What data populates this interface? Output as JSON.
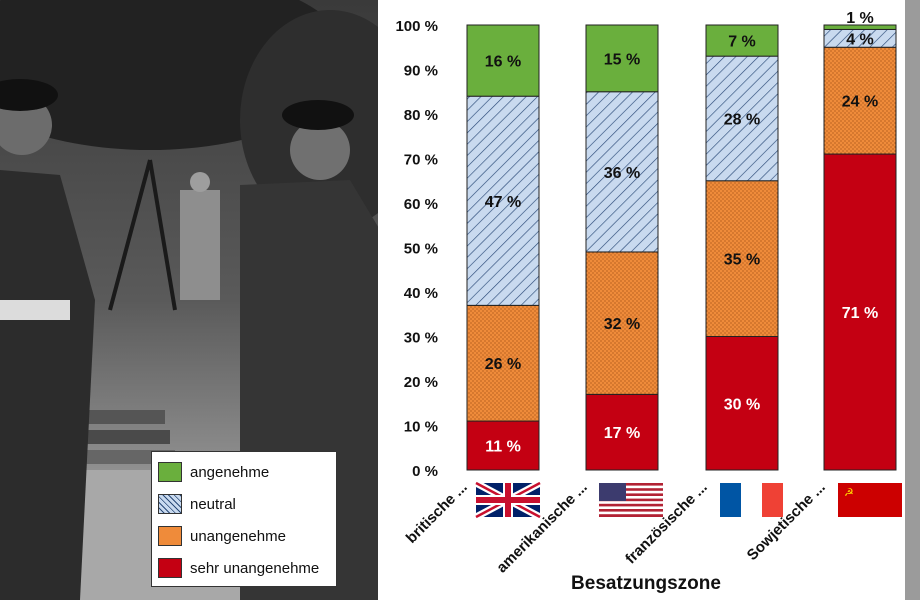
{
  "colors": {
    "angenehme": "#6aaf3d",
    "neutral": "#c9daef",
    "unangenehme": "#ef8b3a",
    "sehr_unangenehme": "#c40012",
    "chart_background": "#ffffff"
  },
  "icons": [
    "union-jack-flag-icon",
    "us-flag-icon",
    "french-flag-icon",
    "soviet-flag-icon",
    "photo-background"
  ],
  "chart_data": {
    "type": "bar",
    "stacked": true,
    "categories": [
      "britische ...",
      "amerikanische ...",
      "französische ...",
      "Sowjetische ..."
    ],
    "series": [
      {
        "name": "sehr unangenehme",
        "values": [
          11,
          17,
          30,
          71
        ],
        "labels": [
          "11 %",
          "17 %",
          "30 %",
          "71 %"
        ]
      },
      {
        "name": "unangenehme",
        "values": [
          26,
          32,
          35,
          24
        ],
        "labels": [
          "26 %",
          "32 %",
          "35 %",
          "24 %"
        ]
      },
      {
        "name": "neutral",
        "values": [
          47,
          36,
          28,
          4
        ],
        "labels": [
          "47 %",
          "36 %",
          "28 %",
          "4 %"
        ]
      },
      {
        "name": "angenehme",
        "values": [
          16,
          15,
          7,
          1
        ],
        "labels": [
          "16 %",
          "15 %",
          "7 %",
          "1 %"
        ]
      }
    ],
    "legend_order": [
      "angenehme",
      "neutral",
      "unangenehme",
      "sehr unangenehme"
    ],
    "xlabel": "Besatzungszone",
    "ylabel": "",
    "ylim": [
      0,
      100
    ],
    "y_ticks": [
      0,
      10,
      20,
      30,
      40,
      50,
      60,
      70,
      80,
      90,
      100
    ],
    "y_tick_labels": [
      "0 %",
      "10 %",
      "20 %",
      "30 %",
      "40 %",
      "50 %",
      "60 %",
      "70 %",
      "80 %",
      "90 %",
      "100 %"
    ],
    "grid": false,
    "legend_position": "bottom-left"
  }
}
